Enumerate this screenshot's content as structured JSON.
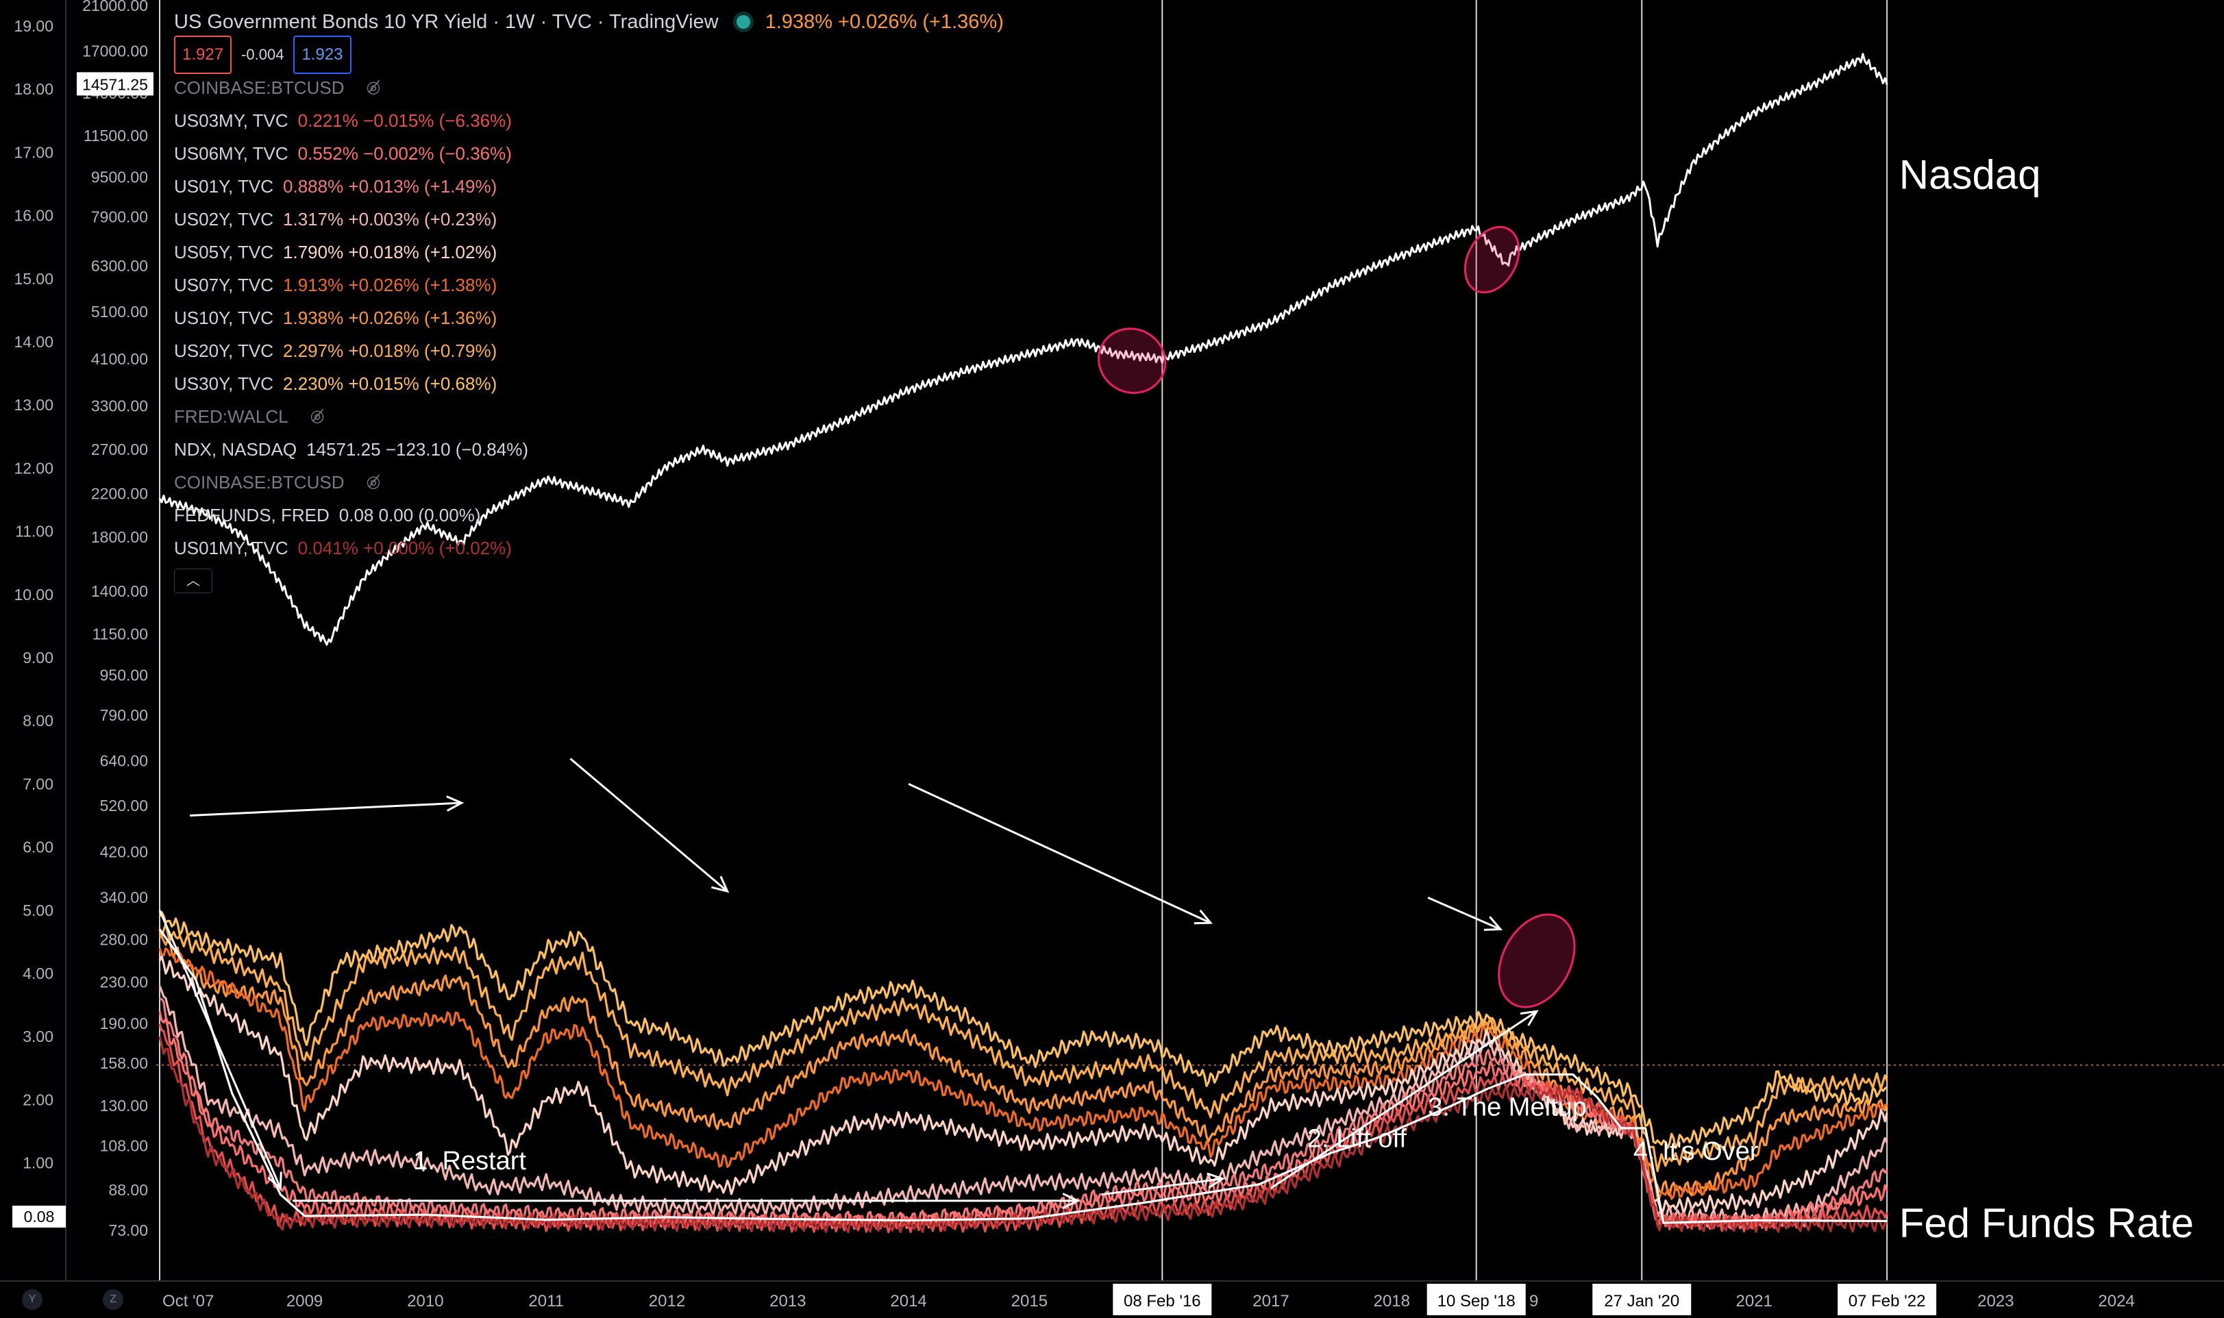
{
  "header": {
    "title": "US Government Bonds 10 YR Yield · 1W · TVC · TradingView",
    "quote": "1.938% +0.026% (+1.36%)",
    "bid": "1.927",
    "spread": "-0.004",
    "ask": "1.923"
  },
  "legend": [
    {
      "symbol": "COINBASE:BTCUSD",
      "value": "",
      "color": "#787b86",
      "hidden": true
    },
    {
      "symbol": "US03MY, TVC",
      "value": "0.221% −0.015% (−6.36%)",
      "color": "#e84d4d",
      "hidden": false
    },
    {
      "symbol": "US06MY, TVC",
      "value": "0.552% −0.002% (−0.36%)",
      "color": "#ff6f6f",
      "hidden": false
    },
    {
      "symbol": "US01Y, TVC",
      "value": "0.888% +0.013% (+1.49%)",
      "color": "#f47a7a",
      "hidden": false
    },
    {
      "symbol": "US02Y, TVC",
      "value": "1.317% +0.003% (+0.23%)",
      "color": "#f5b7b1",
      "hidden": false
    },
    {
      "symbol": "US05Y, TVC",
      "value": "1.790% +0.018% (+1.02%)",
      "color": "#ffd4c4",
      "hidden": false
    },
    {
      "symbol": "US07Y, TVC",
      "value": "1.913% +0.026% (+1.38%)",
      "color": "#f26b21",
      "hidden": false
    },
    {
      "symbol": "US10Y, TVC",
      "value": "1.938% +0.026% (+1.36%)",
      "color": "#ff9838",
      "hidden": false
    },
    {
      "symbol": "US20Y, TVC",
      "value": "2.297% +0.018% (+0.79%)",
      "color": "#ffb04a",
      "hidden": false
    },
    {
      "symbol": "US30Y, TVC",
      "value": "2.230% +0.015% (+0.68%)",
      "color": "#ffc15e",
      "hidden": false
    },
    {
      "symbol": "FRED:WALCL",
      "value": "",
      "color": "#787b86",
      "hidden": true
    },
    {
      "symbol": "NDX, NASDAQ",
      "value": "14571.25 −123.10 (−0.84%)",
      "color": "#d1d4dc",
      "hidden": false
    },
    {
      "symbol": "COINBASE:BTCUSD",
      "value": "",
      "color": "#787b86",
      "hidden": true
    },
    {
      "symbol": "FEDFUNDS, FRED",
      "value": "0.08 0.00 (0.00%)",
      "color": "#d1d4dc",
      "hidden": false
    },
    {
      "symbol": "US01MY, TVC",
      "value": "0.041% +0.000% (+0.02%)",
      "color": "#b22f2f",
      "hidden": false
    }
  ],
  "icons": {
    "hidden": "eye-crossed-icon",
    "collapse": "chevron-up-icon"
  },
  "bottom_buttons": [
    "Y",
    "Z"
  ],
  "chart_data": {
    "type": "line",
    "title": "US Government Bonds 10 YR Yield · 1W · TVC · TradingView",
    "xlabel": "",
    "ylabel": "",
    "x_ticks": [
      "Oct '07",
      "2009",
      "2010",
      "2011",
      "2012",
      "2013",
      "2014",
      "2015",
      "08 Feb '16",
      "2017",
      "2018",
      "10 Sep '18",
      "9",
      "27 Jan '20",
      "2021",
      "07 Feb '22",
      "2023",
      "2024"
    ],
    "y_left_ticks": [
      "19.00",
      "18.00",
      "17.00",
      "16.00",
      "15.00",
      "14.00",
      "13.00",
      "12.00",
      "11.00",
      "10.00",
      "9.00",
      "8.00",
      "7.00",
      "6.00",
      "5.00",
      "4.00",
      "3.00",
      "2.00",
      "1.00"
    ],
    "y_left_badge": "0.08",
    "y_right_ticks": [
      "21000.00",
      "17000.00",
      "14000.00",
      "11500.00",
      "9500.00",
      "7900.00",
      "6300.00",
      "5100.00",
      "4100.00",
      "3300.00",
      "2700.00",
      "2200.00",
      "1800.00",
      "1400.00",
      "1150.00",
      "950.00",
      "790.00",
      "640.00",
      "520.00",
      "420.00",
      "340.00",
      "280.00",
      "230.00",
      "190.00",
      "158.00",
      "130.00",
      "108.00",
      "88.00",
      "73.00"
    ],
    "y_right_badge": "14571.25",
    "log_scale_right": true,
    "grid": false,
    "series": [
      {
        "name": "NDX, NASDAQ",
        "color": "#ffffff",
        "x": [
          2007.8,
          2008.2,
          2008.5,
          2008.8,
          2009.0,
          2009.2,
          2009.5,
          2010.0,
          2010.3,
          2010.5,
          2011.0,
          2011.3,
          2011.7,
          2012.0,
          2012.3,
          2012.5,
          2013.0,
          2013.5,
          2014.0,
          2014.5,
          2015.0,
          2015.4,
          2015.7,
          2016.1,
          2016.5,
          2017.0,
          2017.5,
          2018.0,
          2018.7,
          2018.95,
          2019.0,
          2019.5,
          2019.95,
          2020.1,
          2020.2,
          2020.5,
          2020.8,
          2021.0,
          2021.5,
          2021.9,
          2022.1
        ],
        "y": [
          2150,
          2000,
          1800,
          1450,
          1200,
          1100,
          1500,
          1900,
          1750,
          2000,
          2350,
          2250,
          2100,
          2500,
          2700,
          2550,
          2750,
          3100,
          3550,
          3900,
          4200,
          4450,
          4200,
          4100,
          4400,
          4850,
          5750,
          6500,
          7500,
          6300,
          6700,
          7800,
          8600,
          9200,
          7000,
          10200,
          11800,
          12800,
          14600,
          16500,
          14571
        ]
      },
      {
        "name": "US30Y, TVC",
        "color": "#ffc15e",
        "x": [
          2007.8,
          2008.2,
          2008.8,
          2009.0,
          2009.3,
          2009.8,
          2010.3,
          2010.7,
          2011.0,
          2011.3,
          2011.7,
          2012.0,
          2012.5,
          2013.0,
          2013.5,
          2014.0,
          2014.5,
          2015.0,
          2015.5,
          2016.0,
          2016.5,
          2017.0,
          2017.5,
          2018.0,
          2018.8,
          2019.0,
          2019.5,
          2020.0,
          2020.2,
          2020.5,
          2021.0,
          2021.2,
          2021.5,
          2021.9,
          2022.1
        ],
        "y": [
          4.9,
          4.5,
          4.2,
          2.9,
          4.2,
          4.4,
          4.7,
          3.6,
          4.4,
          4.6,
          3.2,
          3.1,
          2.6,
          3.1,
          3.6,
          3.8,
          3.3,
          2.6,
          3.0,
          2.9,
          2.3,
          3.1,
          2.8,
          3.0,
          3.3,
          3.0,
          2.6,
          2.1,
          1.3,
          1.4,
          1.8,
          2.4,
          2.1,
          2.0,
          2.2
        ]
      },
      {
        "name": "US20Y, TVC",
        "color": "#ffb04a",
        "x": [
          2007.8,
          2008.8,
          2009.0,
          2009.5,
          2010.3,
          2010.7,
          2011.0,
          2011.3,
          2011.7,
          2012.5,
          2013.5,
          2014.0,
          2014.5,
          2015.0,
          2016.0,
          2016.5,
          2017.0,
          2018.0,
          2018.8,
          2019.5,
          2020.0,
          2020.2,
          2021.0,
          2021.2,
          2022.1
        ],
        "y": [
          4.7,
          3.8,
          2.6,
          4.2,
          4.3,
          3.0,
          4.1,
          4.2,
          2.8,
          2.2,
          3.3,
          3.5,
          3.0,
          2.3,
          2.6,
          1.8,
          2.7,
          2.7,
          3.2,
          2.3,
          1.9,
          1.0,
          1.4,
          2.2,
          2.3
        ]
      },
      {
        "name": "US10Y, TVC",
        "color": "#ff9838",
        "x": [
          2007.8,
          2008.2,
          2008.8,
          2009.0,
          2009.5,
          2010.3,
          2010.7,
          2011.0,
          2011.3,
          2011.7,
          2012.5,
          2013.5,
          2014.0,
          2014.5,
          2015.0,
          2016.0,
          2016.5,
          2017.0,
          2018.0,
          2018.8,
          2019.5,
          2020.0,
          2020.2,
          2020.6,
          2021.0,
          2021.2,
          2022.1
        ],
        "y": [
          4.6,
          3.8,
          3.6,
          2.2,
          3.6,
          3.9,
          2.5,
          3.4,
          3.6,
          2.0,
          1.6,
          2.9,
          3.0,
          2.4,
          1.9,
          2.2,
          1.4,
          2.4,
          2.5,
          3.2,
          2.0,
          1.7,
          0.6,
          0.6,
          1.1,
          1.7,
          1.94
        ]
      },
      {
        "name": "US07Y, TVC",
        "color": "#f26b21",
        "x": [
          2007.8,
          2008.8,
          2009.0,
          2009.5,
          2010.3,
          2010.7,
          2011.0,
          2011.3,
          2011.7,
          2012.5,
          2013.5,
          2014.0,
          2015.0,
          2016.0,
          2016.5,
          2017.0,
          2018.0,
          2018.8,
          2019.5,
          2020.0,
          2020.2,
          2021.0,
          2021.2,
          2022.1
        ],
        "y": [
          4.4,
          3.3,
          1.9,
          3.2,
          3.3,
          2.0,
          3.0,
          3.1,
          1.6,
          1.0,
          2.3,
          2.4,
          1.6,
          1.8,
          1.2,
          2.2,
          2.3,
          3.1,
          1.8,
          1.6,
          0.5,
          0.7,
          1.2,
          1.91
        ]
      },
      {
        "name": "US05Y, TVC",
        "color": "#ffd4c4",
        "x": [
          2007.8,
          2008.8,
          2009.0,
          2009.5,
          2010.3,
          2010.7,
          2011.0,
          2011.3,
          2011.7,
          2012.5,
          2013.5,
          2014.0,
          2015.0,
          2016.0,
          2016.5,
          2017.0,
          2018.0,
          2018.8,
          2019.5,
          2020.0,
          2020.2,
          2021.0,
          2021.5,
          2022.1
        ],
        "y": [
          4.2,
          2.7,
          1.4,
          2.6,
          2.5,
          1.2,
          2.0,
          2.2,
          0.9,
          0.6,
          1.6,
          1.7,
          1.3,
          1.5,
          1.0,
          1.9,
          2.2,
          3.0,
          1.6,
          1.5,
          0.3,
          0.4,
          0.8,
          1.79
        ]
      },
      {
        "name": "US02Y, TVC",
        "color": "#f5b7b1",
        "x": [
          2007.8,
          2008.2,
          2008.8,
          2009.0,
          2009.5,
          2010.0,
          2010.5,
          2011.0,
          2011.5,
          2012.0,
          2013.0,
          2014.0,
          2015.0,
          2015.5,
          2016.0,
          2016.5,
          2017.0,
          2018.0,
          2018.8,
          2019.5,
          2020.0,
          2020.2,
          2021.0,
          2021.5,
          2022.1
        ],
        "y": [
          3.8,
          2.0,
          1.5,
          0.9,
          1.1,
          1.0,
          0.6,
          0.7,
          0.4,
          0.3,
          0.3,
          0.5,
          0.7,
          0.7,
          0.8,
          0.7,
          1.2,
          2.0,
          2.9,
          1.6,
          1.5,
          0.2,
          0.12,
          0.3,
          1.32
        ]
      },
      {
        "name": "US01Y, TVC",
        "color": "#f47a7a",
        "x": [
          2007.8,
          2008.2,
          2008.8,
          2009.0,
          2010.0,
          2011.0,
          2012.0,
          2013.0,
          2014.0,
          2015.0,
          2015.9,
          2016.5,
          2017.0,
          2018.0,
          2018.8,
          2019.5,
          2020.0,
          2020.2,
          2021.0,
          2021.5,
          2022.1
        ],
        "y": [
          3.6,
          1.7,
          1.0,
          0.5,
          0.3,
          0.2,
          0.15,
          0.12,
          0.12,
          0.25,
          0.6,
          0.6,
          0.9,
          1.9,
          2.7,
          1.9,
          1.5,
          0.1,
          0.07,
          0.1,
          0.89
        ]
      },
      {
        "name": "US06MY, TVC",
        "color": "#ff6f6f",
        "x": [
          2007.8,
          2008.2,
          2008.8,
          2009.0,
          2010.0,
          2011.0,
          2012.0,
          2013.0,
          2014.0,
          2015.0,
          2015.9,
          2016.5,
          2017.0,
          2018.0,
          2018.8,
          2019.5,
          2020.0,
          2020.2,
          2021.0,
          2022.1
        ],
        "y": [
          3.4,
          1.6,
          0.6,
          0.3,
          0.2,
          0.1,
          0.1,
          0.08,
          0.07,
          0.2,
          0.5,
          0.45,
          0.7,
          1.8,
          2.5,
          2.0,
          1.5,
          0.1,
          0.05,
          0.55
        ]
      },
      {
        "name": "US03MY, TVC",
        "color": "#e84d4d",
        "x": [
          2007.8,
          2008.2,
          2008.8,
          2009.0,
          2010.0,
          2011.0,
          2012.0,
          2013.0,
          2014.0,
          2015.0,
          2015.9,
          2016.5,
          2017.0,
          2018.0,
          2018.8,
          2019.5,
          2020.0,
          2020.2,
          2021.0,
          2022.1
        ],
        "y": [
          3.2,
          1.3,
          0.1,
          0.15,
          0.12,
          0.05,
          0.07,
          0.04,
          0.03,
          0.05,
          0.3,
          0.3,
          0.6,
          1.7,
          2.3,
          2.1,
          1.5,
          0.08,
          0.04,
          0.22
        ]
      },
      {
        "name": "US01MY, TVC",
        "color": "#b22f2f",
        "x": [
          2007.8,
          2008.2,
          2008.8,
          2009.0,
          2010.0,
          2012.0,
          2014.0,
          2015.9,
          2016.5,
          2017.0,
          2018.0,
          2018.8,
          2019.5,
          2020.0,
          2020.2,
          2021.0,
          2022.1
        ],
        "y": [
          3.0,
          1.2,
          0.05,
          0.1,
          0.1,
          0.05,
          0.02,
          0.2,
          0.25,
          0.5,
          1.5,
          2.1,
          2.1,
          1.5,
          0.05,
          0.03,
          0.04
        ]
      },
      {
        "name": "FEDFUNDS, FRED",
        "color": "#ffffff",
        "x": [
          2007.8,
          2008.1,
          2008.4,
          2008.8,
          2009.0,
          2010.0,
          2011.0,
          2012.0,
          2013.0,
          2014.0,
          2015.0,
          2015.95,
          2016.9,
          2017.2,
          2017.5,
          2017.9,
          2018.2,
          2018.5,
          2018.8,
          2019.1,
          2019.5,
          2019.7,
          2019.9,
          2020.1,
          2020.25,
          2021.0,
          2022.1
        ],
        "y": [
          4.7,
          3.9,
          2.1,
          0.5,
          0.16,
          0.18,
          0.1,
          0.14,
          0.11,
          0.09,
          0.12,
          0.37,
          0.66,
          0.91,
          1.16,
          1.41,
          1.66,
          1.91,
          2.18,
          2.4,
          2.4,
          2.04,
          1.55,
          1.55,
          0.05,
          0.09,
          0.08
        ]
      }
    ],
    "annotations": [
      {
        "text": "Nasdaq",
        "x": 2022.2,
        "y": 16.6
      },
      {
        "text": "Fed Funds Rate",
        "x": 2022.2,
        "y": 0.0
      },
      {
        "text": "1. Restart",
        "x": 2009.9,
        "y": 0.9
      },
      {
        "text": "2. Lift off",
        "x": 2017.3,
        "y": 1.25
      },
      {
        "text": "3. The Meltup",
        "x": 2018.3,
        "y": 1.75
      },
      {
        "text": "4. It's Over",
        "x": 2020.0,
        "y": 1.05
      }
    ],
    "vertical_markers": [
      2007.8,
      2016.1,
      2018.7,
      2020.07,
      2022.1
    ],
    "current_line": 2.55,
    "arrows": [
      {
        "x1": 2008.05,
        "y1": 6.5,
        "x2": 2010.3,
        "y2": 6.7
      },
      {
        "x1": 2011.2,
        "y1": 7.4,
        "x2": 2012.5,
        "y2": 5.3
      },
      {
        "x1": 2014.0,
        "y1": 7.0,
        "x2": 2016.5,
        "y2": 4.8
      },
      {
        "x1": 2018.3,
        "y1": 5.2,
        "x2": 2018.9,
        "y2": 4.7
      },
      {
        "x1": 2007.8,
        "y1": 5.0,
        "x2": 2008.8,
        "y2": 0.6
      },
      {
        "x1": 2008.9,
        "y1": 0.4,
        "x2": 2015.4,
        "y2": 0.4
      },
      {
        "x1": 2015.6,
        "y1": 0.5,
        "x2": 2016.6,
        "y2": 0.75
      },
      {
        "x1": 2017.0,
        "y1": 0.6,
        "x2": 2019.2,
        "y2": 3.4
      }
    ],
    "highlights": [
      {
        "x": 2015.85,
        "y": 13.7,
        "rx": 0.28,
        "ry": 0.5
      },
      {
        "x": 2018.83,
        "y": 15.3,
        "rx": 0.2,
        "ry": 0.55
      },
      {
        "x": 2019.2,
        "y": 4.2,
        "rx": 0.28,
        "ry": 0.78
      }
    ]
  }
}
